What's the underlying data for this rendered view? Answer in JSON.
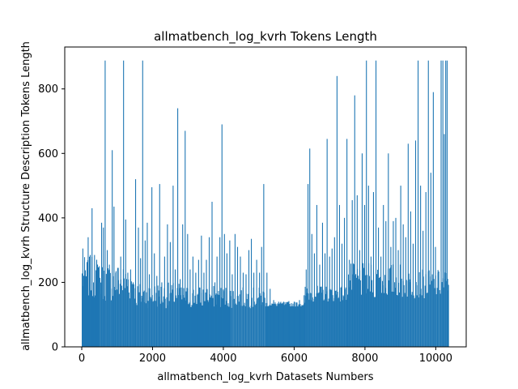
{
  "chart_data": {
    "type": "bar",
    "title": "allmatbench_log_kvrh Tokens Length",
    "xlabel": "allmatbench_log_kvrh Datasets Numbers",
    "ylabel": "allmatbench_log_kvrh Structure Description Tokens Length",
    "xlim": [
      -480,
      10860
    ],
    "ylim": [
      0,
      930
    ],
    "xticks": [
      0,
      2000,
      4000,
      6000,
      8000,
      10000
    ],
    "yticks": [
      0,
      200,
      400,
      600,
      800
    ],
    "bar_color": "#1f77b4",
    "grid": false,
    "n_samples": 10355,
    "baseline_segments": [
      {
        "x": [
          0,
          500
        ],
        "level": [
          150,
          280
        ]
      },
      {
        "x": [
          500,
          1500
        ],
        "level": [
          140,
          260
        ]
      },
      {
        "x": [
          1500,
          2800
        ],
        "level": [
          120,
          200
        ]
      },
      {
        "x": [
          2800,
          4200
        ],
        "level": [
          120,
          190
        ]
      },
      {
        "x": [
          4200,
          5200
        ],
        "level": [
          120,
          185
        ]
      },
      {
        "x": [
          5200,
          6300
        ],
        "level": [
          125,
          140
        ]
      },
      {
        "x": [
          6300,
          7500
        ],
        "level": [
          140,
          190
        ]
      },
      {
        "x": [
          7500,
          9000
        ],
        "level": [
          150,
          260
        ]
      },
      {
        "x": [
          9000,
          10355
        ],
        "level": [
          150,
          240
        ]
      }
    ],
    "spikes": [
      {
        "x": 30,
        "y": 305
      },
      {
        "x": 100,
        "y": 190
      },
      {
        "x": 180,
        "y": 340
      },
      {
        "x": 240,
        "y": 285
      },
      {
        "x": 290,
        "y": 430
      },
      {
        "x": 360,
        "y": 285
      },
      {
        "x": 420,
        "y": 270
      },
      {
        "x": 490,
        "y": 250
      },
      {
        "x": 560,
        "y": 385
      },
      {
        "x": 610,
        "y": 370
      },
      {
        "x": 660,
        "y": 888
      },
      {
        "x": 720,
        "y": 300
      },
      {
        "x": 780,
        "y": 255
      },
      {
        "x": 860,
        "y": 610
      },
      {
        "x": 910,
        "y": 435
      },
      {
        "x": 960,
        "y": 230
      },
      {
        "x": 1030,
        "y": 245
      },
      {
        "x": 1100,
        "y": 280
      },
      {
        "x": 1180,
        "y": 888
      },
      {
        "x": 1240,
        "y": 395
      },
      {
        "x": 1300,
        "y": 230
      },
      {
        "x": 1380,
        "y": 240
      },
      {
        "x": 1450,
        "y": 200
      },
      {
        "x": 1520,
        "y": 520
      },
      {
        "x": 1600,
        "y": 370
      },
      {
        "x": 1660,
        "y": 275
      },
      {
        "x": 1720,
        "y": 888
      },
      {
        "x": 1790,
        "y": 330
      },
      {
        "x": 1850,
        "y": 385
      },
      {
        "x": 1910,
        "y": 225
      },
      {
        "x": 1980,
        "y": 495
      },
      {
        "x": 2050,
        "y": 290
      },
      {
        "x": 2120,
        "y": 220
      },
      {
        "x": 2200,
        "y": 505
      },
      {
        "x": 2260,
        "y": 200
      },
      {
        "x": 2340,
        "y": 280
      },
      {
        "x": 2420,
        "y": 380
      },
      {
        "x": 2500,
        "y": 325
      },
      {
        "x": 2580,
        "y": 500
      },
      {
        "x": 2640,
        "y": 240
      },
      {
        "x": 2710,
        "y": 740
      },
      {
        "x": 2780,
        "y": 210
      },
      {
        "x": 2850,
        "y": 380
      },
      {
        "x": 2920,
        "y": 670
      },
      {
        "x": 2990,
        "y": 350
      },
      {
        "x": 3060,
        "y": 240
      },
      {
        "x": 3140,
        "y": 280
      },
      {
        "x": 3220,
        "y": 230
      },
      {
        "x": 3300,
        "y": 270
      },
      {
        "x": 3380,
        "y": 345
      },
      {
        "x": 3450,
        "y": 230
      },
      {
        "x": 3520,
        "y": 270
      },
      {
        "x": 3600,
        "y": 340
      },
      {
        "x": 3680,
        "y": 450
      },
      {
        "x": 3760,
        "y": 200
      },
      {
        "x": 3820,
        "y": 280
      },
      {
        "x": 3900,
        "y": 340
      },
      {
        "x": 3960,
        "y": 690
      },
      {
        "x": 4030,
        "y": 350
      },
      {
        "x": 4100,
        "y": 290
      },
      {
        "x": 4180,
        "y": 330
      },
      {
        "x": 4250,
        "y": 225
      },
      {
        "x": 4330,
        "y": 350
      },
      {
        "x": 4400,
        "y": 310
      },
      {
        "x": 4480,
        "y": 280
      },
      {
        "x": 4560,
        "y": 230
      },
      {
        "x": 4640,
        "y": 225
      },
      {
        "x": 4720,
        "y": 300
      },
      {
        "x": 4790,
        "y": 335
      },
      {
        "x": 4860,
        "y": 230
      },
      {
        "x": 4940,
        "y": 270
      },
      {
        "x": 5020,
        "y": 230
      },
      {
        "x": 5080,
        "y": 310
      },
      {
        "x": 5140,
        "y": 505
      },
      {
        "x": 5230,
        "y": 230
      },
      {
        "x": 5320,
        "y": 180
      },
      {
        "x": 5420,
        "y": 145
      },
      {
        "x": 5560,
        "y": 140
      },
      {
        "x": 5700,
        "y": 140
      },
      {
        "x": 5850,
        "y": 142
      },
      {
        "x": 6000,
        "y": 140
      },
      {
        "x": 6150,
        "y": 145
      },
      {
        "x": 6280,
        "y": 160
      },
      {
        "x": 6340,
        "y": 240
      },
      {
        "x": 6390,
        "y": 505
      },
      {
        "x": 6440,
        "y": 615
      },
      {
        "x": 6500,
        "y": 350
      },
      {
        "x": 6570,
        "y": 290
      },
      {
        "x": 6640,
        "y": 440
      },
      {
        "x": 6720,
        "y": 255
      },
      {
        "x": 6800,
        "y": 385
      },
      {
        "x": 6870,
        "y": 290
      },
      {
        "x": 6930,
        "y": 645
      },
      {
        "x": 7000,
        "y": 280
      },
      {
        "x": 7070,
        "y": 305
      },
      {
        "x": 7140,
        "y": 340
      },
      {
        "x": 7210,
        "y": 840
      },
      {
        "x": 7280,
        "y": 440
      },
      {
        "x": 7350,
        "y": 320
      },
      {
        "x": 7420,
        "y": 400
      },
      {
        "x": 7490,
        "y": 645
      },
      {
        "x": 7560,
        "y": 270
      },
      {
        "x": 7640,
        "y": 455
      },
      {
        "x": 7710,
        "y": 780
      },
      {
        "x": 7780,
        "y": 470
      },
      {
        "x": 7850,
        "y": 300
      },
      {
        "x": 7920,
        "y": 600
      },
      {
        "x": 7990,
        "y": 440
      },
      {
        "x": 8040,
        "y": 888
      },
      {
        "x": 8100,
        "y": 500
      },
      {
        "x": 8170,
        "y": 280
      },
      {
        "x": 8240,
        "y": 480
      },
      {
        "x": 8310,
        "y": 888
      },
      {
        "x": 8380,
        "y": 370
      },
      {
        "x": 8450,
        "y": 280
      },
      {
        "x": 8520,
        "y": 440
      },
      {
        "x": 8590,
        "y": 390
      },
      {
        "x": 8660,
        "y": 600
      },
      {
        "x": 8730,
        "y": 310
      },
      {
        "x": 8800,
        "y": 390
      },
      {
        "x": 8870,
        "y": 400
      },
      {
        "x": 8940,
        "y": 300
      },
      {
        "x": 9010,
        "y": 500
      },
      {
        "x": 9080,
        "y": 380
      },
      {
        "x": 9150,
        "y": 340
      },
      {
        "x": 9220,
        "y": 630
      },
      {
        "x": 9290,
        "y": 420
      },
      {
        "x": 9360,
        "y": 320
      },
      {
        "x": 9430,
        "y": 640
      },
      {
        "x": 9500,
        "y": 888
      },
      {
        "x": 9570,
        "y": 500
      },
      {
        "x": 9640,
        "y": 360
      },
      {
        "x": 9720,
        "y": 480
      },
      {
        "x": 9790,
        "y": 888
      },
      {
        "x": 9860,
        "y": 540
      },
      {
        "x": 9930,
        "y": 790
      },
      {
        "x": 9990,
        "y": 310
      },
      {
        "x": 10060,
        "y": 230
      },
      {
        "x": 10150,
        "y": 888
      },
      {
        "x": 10200,
        "y": 888
      },
      {
        "x": 10240,
        "y": 660
      },
      {
        "x": 10280,
        "y": 888
      },
      {
        "x": 10320,
        "y": 888
      },
      {
        "x": 10350,
        "y": 175
      }
    ]
  }
}
